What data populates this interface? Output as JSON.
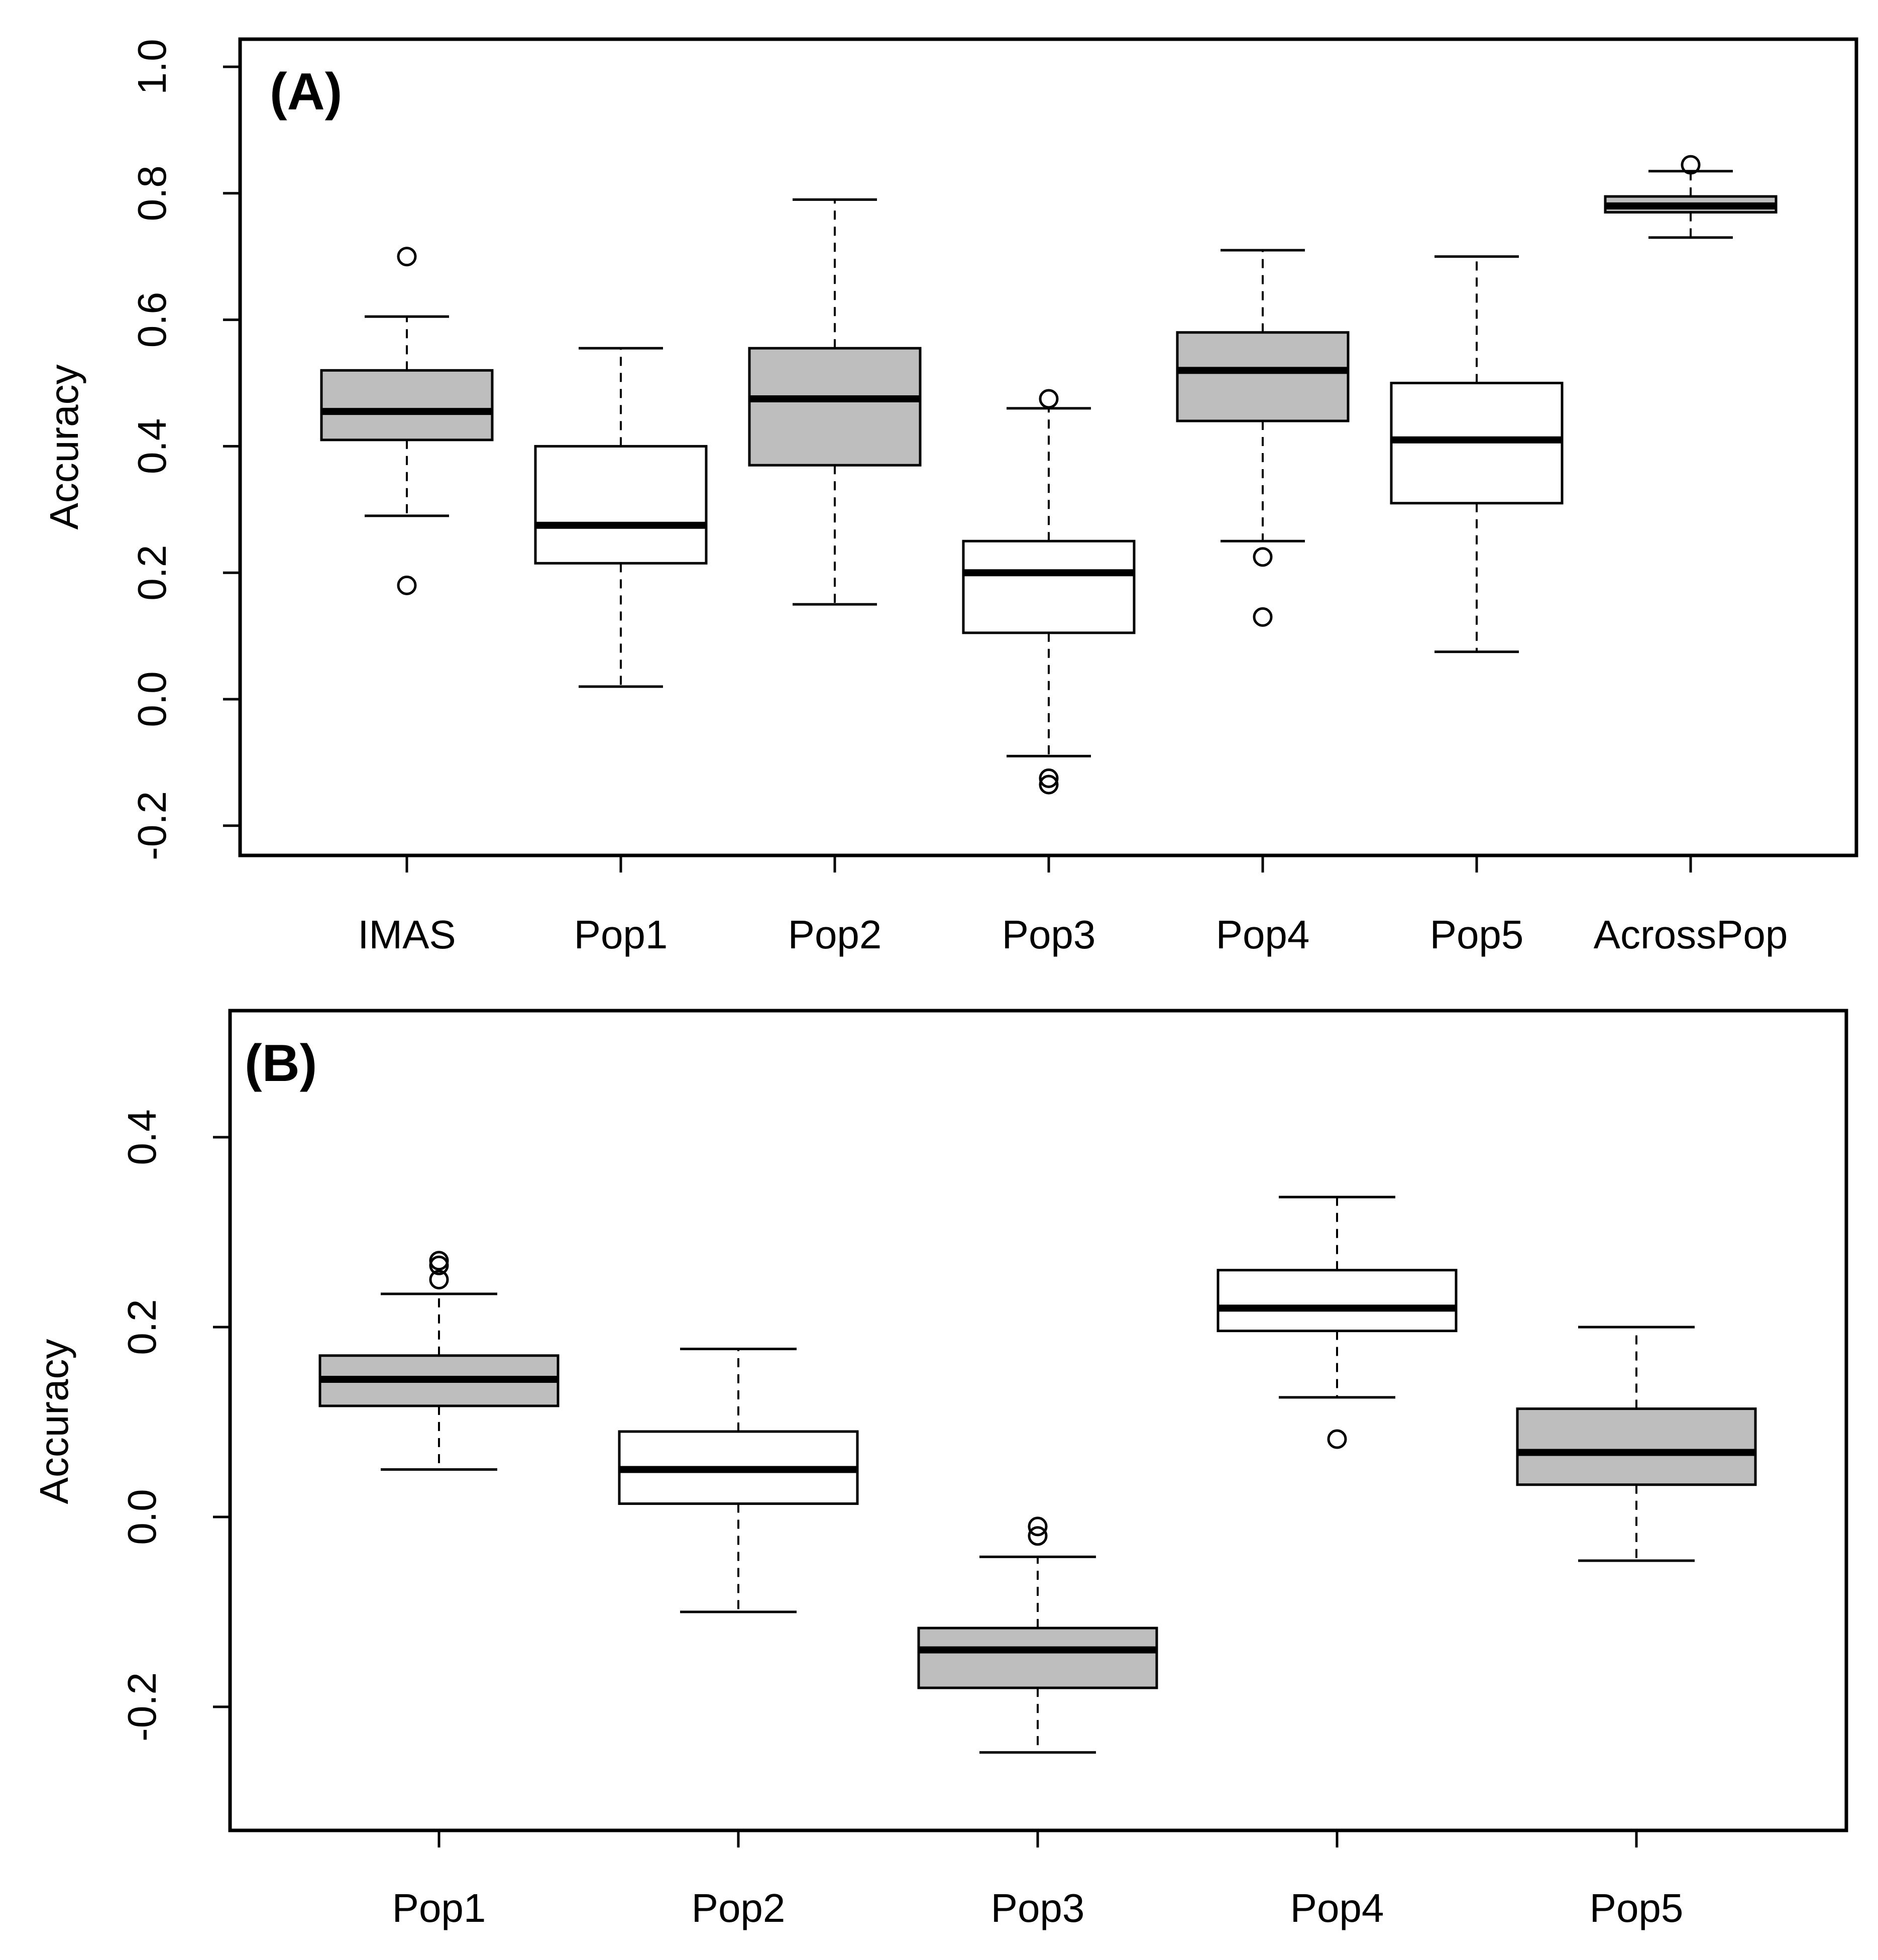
{
  "chart_data": [
    {
      "type": "box",
      "panel_label": "(A)",
      "xlabel": "",
      "ylabel": "Accuracy",
      "ylim": [
        -0.25,
        1.05
      ],
      "yticks": [
        {
          "value": -0.2,
          "label": "-0.2"
        },
        {
          "value": 0.0,
          "label": "0.0"
        },
        {
          "value": 0.2,
          "label": "0.2"
        },
        {
          "value": 0.4,
          "label": "0.4"
        },
        {
          "value": 0.6,
          "label": "0.6"
        },
        {
          "value": 0.8,
          "label": "0.8"
        },
        {
          "value": 1.0,
          "label": "1.0"
        }
      ],
      "grid": false,
      "categories": [
        "IMAS",
        "Pop1",
        "Pop2",
        "Pop3",
        "Pop4",
        "Pop5",
        "AcrossPop"
      ],
      "boxes": [
        {
          "name": "IMAS",
          "fill": "#bebebe",
          "whisker_low": 0.29,
          "q1": 0.41,
          "median": 0.455,
          "q3": 0.52,
          "whisker_high": 0.605,
          "outliers": [
            0.7,
            0.18
          ]
        },
        {
          "name": "Pop1",
          "fill": "#ffffff",
          "whisker_low": 0.02,
          "q1": 0.215,
          "median": 0.275,
          "q3": 0.4,
          "whisker_high": 0.555,
          "outliers": []
        },
        {
          "name": "Pop2",
          "fill": "#bebebe",
          "whisker_low": 0.15,
          "q1": 0.37,
          "median": 0.475,
          "q3": 0.555,
          "whisker_high": 0.79,
          "outliers": []
        },
        {
          "name": "Pop3",
          "fill": "#ffffff",
          "whisker_low": -0.09,
          "q1": 0.105,
          "median": 0.2,
          "q3": 0.25,
          "whisker_high": 0.46,
          "outliers": [
            0.475,
            -0.125,
            -0.135
          ]
        },
        {
          "name": "Pop4",
          "fill": "#bebebe",
          "whisker_low": 0.25,
          "q1": 0.44,
          "median": 0.52,
          "q3": 0.58,
          "whisker_high": 0.71,
          "outliers": [
            0.225,
            0.13
          ]
        },
        {
          "name": "Pop5",
          "fill": "#ffffff",
          "whisker_low": 0.075,
          "q1": 0.31,
          "median": 0.41,
          "q3": 0.5,
          "whisker_high": 0.7,
          "outliers": []
        },
        {
          "name": "AcrossPop",
          "fill": "#bebebe",
          "whisker_low": 0.73,
          "q1": 0.77,
          "median": 0.78,
          "q3": 0.795,
          "whisker_high": 0.835,
          "outliers": [
            0.845
          ]
        }
      ]
    },
    {
      "type": "box",
      "panel_label": "(B)",
      "xlabel": "",
      "ylabel": "Accuracy",
      "ylim": [
        -0.33,
        0.53
      ],
      "yticks": [
        {
          "value": -0.2,
          "label": "-0.2"
        },
        {
          "value": 0.0,
          "label": "0.0"
        },
        {
          "value": 0.2,
          "label": "0.2"
        },
        {
          "value": 0.4,
          "label": "0.4"
        }
      ],
      "grid": false,
      "categories": [
        "Pop1",
        "Pop2",
        "Pop3",
        "Pop4",
        "Pop5"
      ],
      "boxes": [
        {
          "name": "Pop1",
          "fill": "#bebebe",
          "whisker_low": 0.05,
          "q1": 0.117,
          "median": 0.145,
          "q3": 0.17,
          "whisker_high": 0.235,
          "outliers": [
            0.27,
            0.265,
            0.25
          ]
        },
        {
          "name": "Pop2",
          "fill": "#ffffff",
          "whisker_low": -0.1,
          "q1": 0.014,
          "median": 0.05,
          "q3": 0.09,
          "whisker_high": 0.177,
          "outliers": []
        },
        {
          "name": "Pop3",
          "fill": "#bebebe",
          "whisker_low": -0.248,
          "q1": -0.18,
          "median": -0.14,
          "q3": -0.117,
          "whisker_high": -0.042,
          "outliers": [
            -0.01,
            -0.02
          ]
        },
        {
          "name": "Pop4",
          "fill": "#ffffff",
          "whisker_low": 0.126,
          "q1": 0.196,
          "median": 0.22,
          "q3": 0.26,
          "whisker_high": 0.337,
          "outliers": [
            0.082
          ]
        },
        {
          "name": "Pop5",
          "fill": "#bebebe",
          "whisker_low": -0.046,
          "q1": 0.034,
          "median": 0.068,
          "q3": 0.114,
          "whisker_high": 0.2,
          "outliers": []
        }
      ]
    }
  ]
}
